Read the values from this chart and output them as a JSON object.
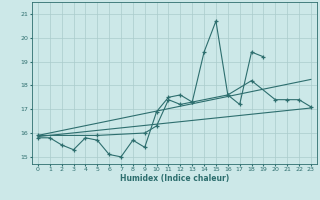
{
  "xlabel": "Humidex (Indice chaleur)",
  "background_color": "#cce8e8",
  "grid_color": "#aacccc",
  "line_color": "#2d6e6e",
  "series1_x": [
    0,
    1,
    2,
    3,
    4,
    5,
    6,
    7,
    8,
    9,
    10,
    11,
    12,
    13,
    16,
    18,
    20,
    21,
    22,
    23
  ],
  "series1_y": [
    15.8,
    15.8,
    15.5,
    15.3,
    15.8,
    15.7,
    15.1,
    15.0,
    15.7,
    15.4,
    16.9,
    17.5,
    17.6,
    17.3,
    17.6,
    18.2,
    17.4,
    17.4,
    17.4,
    17.1
  ],
  "series2_x": [
    0,
    5,
    9,
    10,
    11,
    12,
    13,
    14,
    15,
    16,
    17,
    18,
    19
  ],
  "series2_y": [
    15.9,
    15.9,
    16.0,
    16.3,
    17.4,
    17.2,
    17.3,
    19.4,
    20.7,
    17.6,
    17.2,
    19.4,
    19.2
  ],
  "trend1_x": [
    0,
    23
  ],
  "trend1_y": [
    15.85,
    17.05
  ],
  "trend2_x": [
    0,
    23
  ],
  "trend2_y": [
    15.9,
    18.25
  ],
  "ylim": [
    14.7,
    21.5
  ],
  "xlim": [
    -0.5,
    23.5
  ],
  "yticks": [
    15,
    16,
    17,
    18,
    19,
    20,
    21
  ],
  "xticks": [
    0,
    1,
    2,
    3,
    4,
    5,
    6,
    7,
    8,
    9,
    10,
    11,
    12,
    13,
    14,
    15,
    16,
    17,
    18,
    19,
    20,
    21,
    22,
    23
  ]
}
